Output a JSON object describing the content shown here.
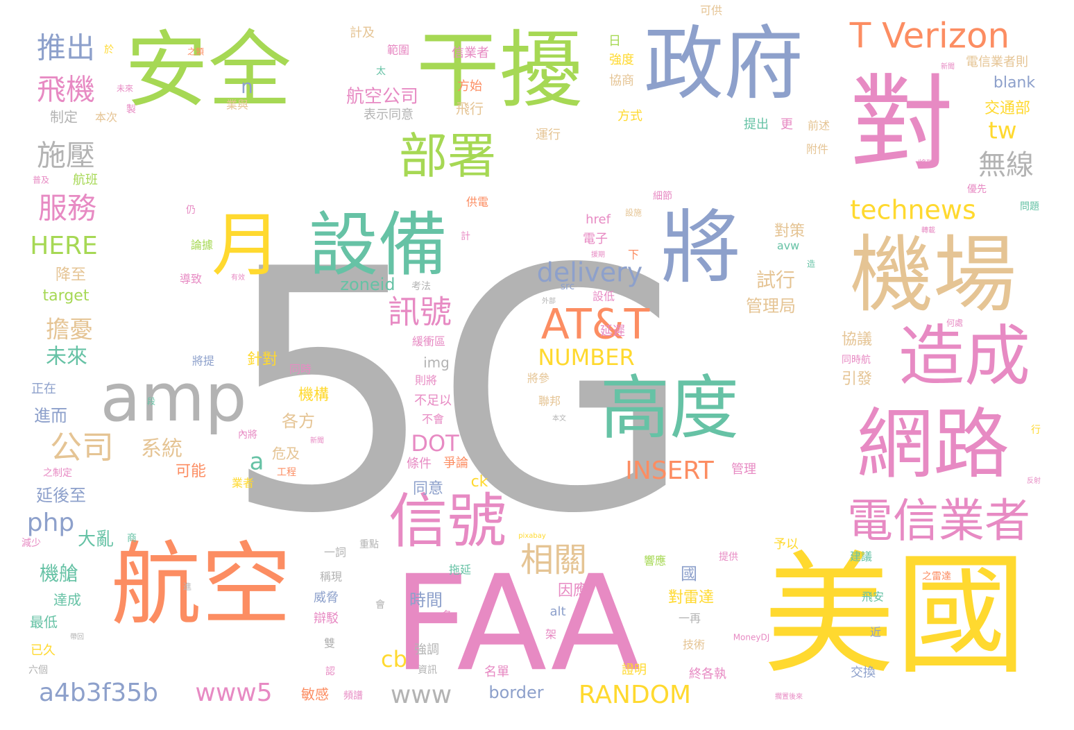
{
  "palette": {
    "gray": "#b3b3b3",
    "pink": "#e78ac3",
    "yellow": "#ffd92f",
    "orange": "#fc8d62",
    "green": "#a6d854",
    "teal": "#66c2a5",
    "blue": "#8da0cb",
    "tan": "#e5c494"
  },
  "words": [
    {
      "text": "5G",
      "color": "gray"
    },
    {
      "text": "FAA",
      "color": "pink"
    },
    {
      "text": "美國",
      "color": "yellow"
    },
    {
      "text": "航空",
      "color": "orange"
    },
    {
      "text": "安全",
      "color": "green"
    },
    {
      "text": "干擾",
      "color": "green"
    },
    {
      "text": "政府",
      "color": "blue"
    },
    {
      "text": "對",
      "color": "pink"
    },
    {
      "text": "機場",
      "color": "tan"
    },
    {
      "text": "網路",
      "color": "pink"
    },
    {
      "text": "造成",
      "color": "pink"
    },
    {
      "text": "高度",
      "color": "teal"
    },
    {
      "text": "將",
      "color": "blue"
    },
    {
      "text": "設備",
      "color": "teal"
    },
    {
      "text": "月",
      "color": "yellow"
    },
    {
      "text": "amp",
      "color": "gray"
    },
    {
      "text": "信號",
      "color": "pink"
    },
    {
      "text": "部署",
      "color": "green"
    },
    {
      "text": "電信業者",
      "color": "pink"
    },
    {
      "text": "AT&T",
      "color": "orange"
    },
    {
      "text": "T Verizon",
      "color": "orange"
    },
    {
      "text": "technews",
      "color": "yellow"
    },
    {
      "text": "delivery",
      "color": "blue"
    },
    {
      "text": "訊號",
      "color": "pink"
    },
    {
      "text": "相關",
      "color": "tan"
    },
    {
      "text": "推出",
      "color": "blue"
    },
    {
      "text": "飛機",
      "color": "pink"
    },
    {
      "text": "施壓",
      "color": "gray"
    },
    {
      "text": "服務",
      "color": "pink"
    },
    {
      "text": "HERE",
      "color": "green"
    },
    {
      "text": "公司",
      "color": "tan"
    },
    {
      "text": "php",
      "color": "blue"
    },
    {
      "text": "a4b3f35b",
      "color": "blue"
    },
    {
      "text": "www5",
      "color": "pink"
    },
    {
      "text": "www",
      "color": "gray"
    },
    {
      "text": "RANDOM",
      "color": "yellow"
    },
    {
      "text": "INSERT",
      "color": "orange"
    },
    {
      "text": "NUMBER",
      "color": "yellow"
    },
    {
      "text": "DOT",
      "color": "pink"
    },
    {
      "text": "無線",
      "color": "gray"
    },
    {
      "text": "tw",
      "color": "yellow"
    },
    {
      "text": "航空公司",
      "color": "pink"
    },
    {
      "text": "試行",
      "color": "tan"
    },
    {
      "text": "擔憂",
      "color": "tan"
    },
    {
      "text": "未來",
      "color": "teal"
    },
    {
      "text": "系統",
      "color": "tan"
    },
    {
      "text": "cb",
      "color": "yellow"
    },
    {
      "text": "a",
      "color": "teal"
    },
    {
      "text": "n",
      "color": "blue"
    },
    {
      "text": "zoneid",
      "color": "teal"
    },
    {
      "text": "border",
      "color": "blue"
    },
    {
      "text": "機艙",
      "color": "teal"
    },
    {
      "text": "大亂",
      "color": "teal"
    },
    {
      "text": "延後至",
      "color": "blue"
    },
    {
      "text": "進而",
      "color": "blue"
    },
    {
      "text": "針對",
      "color": "yellow"
    },
    {
      "text": "機構",
      "color": "yellow"
    },
    {
      "text": "各方",
      "color": "tan"
    },
    {
      "text": "同意",
      "color": "blue"
    },
    {
      "text": "時間",
      "color": "blue"
    },
    {
      "text": "管理局",
      "color": "tan"
    },
    {
      "text": "對策",
      "color": "tan"
    },
    {
      "text": "引發",
      "color": "tan"
    },
    {
      "text": "協議",
      "color": "tan"
    },
    {
      "text": "交通部",
      "color": "yellow"
    },
    {
      "text": "blank",
      "color": "blue"
    },
    {
      "text": "電信業者則",
      "color": "tan"
    },
    {
      "text": "對雷達",
      "color": "yellow"
    },
    {
      "text": "國",
      "color": "blue"
    },
    {
      "text": "因應",
      "color": "pink"
    },
    {
      "text": "target",
      "color": "green"
    },
    {
      "text": "降至",
      "color": "tan"
    },
    {
      "text": "ck",
      "color": "yellow"
    },
    {
      "text": "可能",
      "color": "orange"
    },
    {
      "text": "危及",
      "color": "tan"
    },
    {
      "text": "不足以",
      "color": "pink"
    },
    {
      "text": "img",
      "color": "gray"
    },
    {
      "text": "表示同意",
      "color": "gray"
    },
    {
      "text": "飛行",
      "color": "tan"
    },
    {
      "text": "計及",
      "color": "tan"
    },
    {
      "text": "信業者",
      "color": "pink"
    },
    {
      "text": "制定",
      "color": "gray"
    },
    {
      "text": "本次",
      "color": "tan"
    },
    {
      "text": "航班",
      "color": "green"
    },
    {
      "text": "提出",
      "color": "teal"
    },
    {
      "text": "更",
      "color": "pink"
    },
    {
      "text": "前述",
      "color": "tan"
    },
    {
      "text": "附件",
      "color": "tan"
    },
    {
      "text": "運行",
      "color": "tan"
    },
    {
      "text": "方式",
      "color": "yellow"
    },
    {
      "text": "強度",
      "color": "yellow"
    },
    {
      "text": "協商",
      "color": "tan"
    },
    {
      "text": "日",
      "color": "green"
    },
    {
      "text": "範圍",
      "color": "pink"
    },
    {
      "text": "可供",
      "color": "tan"
    },
    {
      "text": "方始",
      "color": "orange"
    },
    {
      "text": "業與",
      "color": "tan"
    },
    {
      "text": "條件",
      "color": "pink"
    },
    {
      "text": "爭論",
      "color": "orange"
    },
    {
      "text": "管理",
      "color": "pink"
    },
    {
      "text": "威脅",
      "color": "blue"
    },
    {
      "text": "辯駁",
      "color": "pink"
    },
    {
      "text": "強調",
      "color": "gray"
    },
    {
      "text": "名單",
      "color": "pink"
    },
    {
      "text": "證明",
      "color": "yellow"
    },
    {
      "text": "終各執",
      "color": "pink"
    },
    {
      "text": "交換",
      "color": "blue"
    },
    {
      "text": "敏感",
      "color": "orange"
    },
    {
      "text": "技術",
      "color": "tan"
    },
    {
      "text": "拖延",
      "color": "teal"
    },
    {
      "text": "一再",
      "color": "gray"
    },
    {
      "text": "alt",
      "color": "blue"
    },
    {
      "text": "最低",
      "color": "teal"
    },
    {
      "text": "達成",
      "color": "teal"
    },
    {
      "text": "已久",
      "color": "yellow"
    },
    {
      "text": "六個",
      "color": "gray"
    },
    {
      "text": "正在",
      "color": "blue"
    },
    {
      "text": "延遲",
      "color": "pink"
    },
    {
      "text": "設低",
      "color": "pink"
    },
    {
      "text": "電子",
      "color": "pink"
    },
    {
      "text": "href",
      "color": "pink"
    },
    {
      "text": "avw",
      "color": "teal"
    },
    {
      "text": "src",
      "color": "blue"
    },
    {
      "text": "緩衝區",
      "color": "pink"
    },
    {
      "text": "則將",
      "color": "pink"
    },
    {
      "text": "不會",
      "color": "pink"
    },
    {
      "text": "將參",
      "color": "tan"
    },
    {
      "text": "聯邦",
      "color": "tan"
    },
    {
      "text": "供電",
      "color": "orange"
    },
    {
      "text": "導致",
      "color": "pink"
    },
    {
      "text": "論據",
      "color": "green"
    },
    {
      "text": "將提",
      "color": "blue"
    },
    {
      "text": "同時",
      "color": "pink"
    },
    {
      "text": "業者",
      "color": "yellow"
    },
    {
      "text": "工程",
      "color": "orange"
    },
    {
      "text": "予以",
      "color": "yellow"
    },
    {
      "text": "建議",
      "color": "teal"
    },
    {
      "text": "飛安",
      "color": "teal"
    },
    {
      "text": "近",
      "color": "blue"
    },
    {
      "text": "稱現",
      "color": "gray"
    },
    {
      "text": "一詞",
      "color": "gray"
    },
    {
      "text": "重點",
      "color": "gray"
    },
    {
      "text": "提供",
      "color": "pink"
    },
    {
      "text": "響應",
      "color": "green"
    },
    {
      "text": "資訊",
      "color": "gray"
    },
    {
      "text": "頻譜",
      "color": "pink"
    },
    {
      "text": "同時航",
      "color": "pink"
    },
    {
      "text": "優先",
      "color": "pink"
    },
    {
      "text": "問題",
      "color": "teal"
    },
    {
      "text": "將確",
      "color": "pink"
    },
    {
      "text": "下",
      "color": "orange"
    },
    {
      "text": "考法",
      "color": "gray"
    },
    {
      "text": "雙",
      "color": "gray"
    },
    {
      "text": "認",
      "color": "pink"
    },
    {
      "text": "會",
      "color": "gray"
    },
    {
      "text": "名",
      "color": "pink"
    },
    {
      "text": "架",
      "color": "pink"
    },
    {
      "text": "計",
      "color": "pink"
    },
    {
      "text": "仍",
      "color": "pink"
    },
    {
      "text": "太",
      "color": "teal"
    },
    {
      "text": "商",
      "color": "teal"
    },
    {
      "text": "製",
      "color": "pink"
    },
    {
      "text": "於",
      "color": "yellow"
    },
    {
      "text": "段",
      "color": "teal"
    },
    {
      "text": "進",
      "color": "gray"
    },
    {
      "text": "減少",
      "color": "pink"
    },
    {
      "text": "之制定",
      "color": "pink"
    },
    {
      "text": "內將",
      "color": "pink"
    },
    {
      "text": "新聞",
      "color": "pink"
    },
    {
      "text": "何處",
      "color": "pink"
    },
    {
      "text": "造",
      "color": "teal"
    },
    {
      "text": "行",
      "color": "yellow"
    },
    {
      "text": "反射",
      "color": "pink"
    },
    {
      "text": "之雷達",
      "color": "orange"
    },
    {
      "text": "MoneyDJ",
      "color": "pink"
    },
    {
      "text": "pixabay",
      "color": "yellow"
    },
    {
      "text": "細節",
      "color": "pink"
    },
    {
      "text": "設施",
      "color": "tan"
    },
    {
      "text": "援期",
      "color": "pink"
    },
    {
      "text": "本文",
      "color": "gray"
    },
    {
      "text": "外部",
      "color": "gray"
    },
    {
      "text": "有效",
      "color": "pink"
    },
    {
      "text": "之類",
      "color": "orange"
    },
    {
      "text": "未來",
      "color": "pink"
    },
    {
      "text": "普及",
      "color": "pink"
    },
    {
      "text": "新聞",
      "color": "pink"
    },
    {
      "text": "轉載",
      "color": "pink"
    },
    {
      "text": "擱置後來",
      "color": "pink"
    },
    {
      "text": "帶回",
      "color": "gray"
    }
  ]
}
